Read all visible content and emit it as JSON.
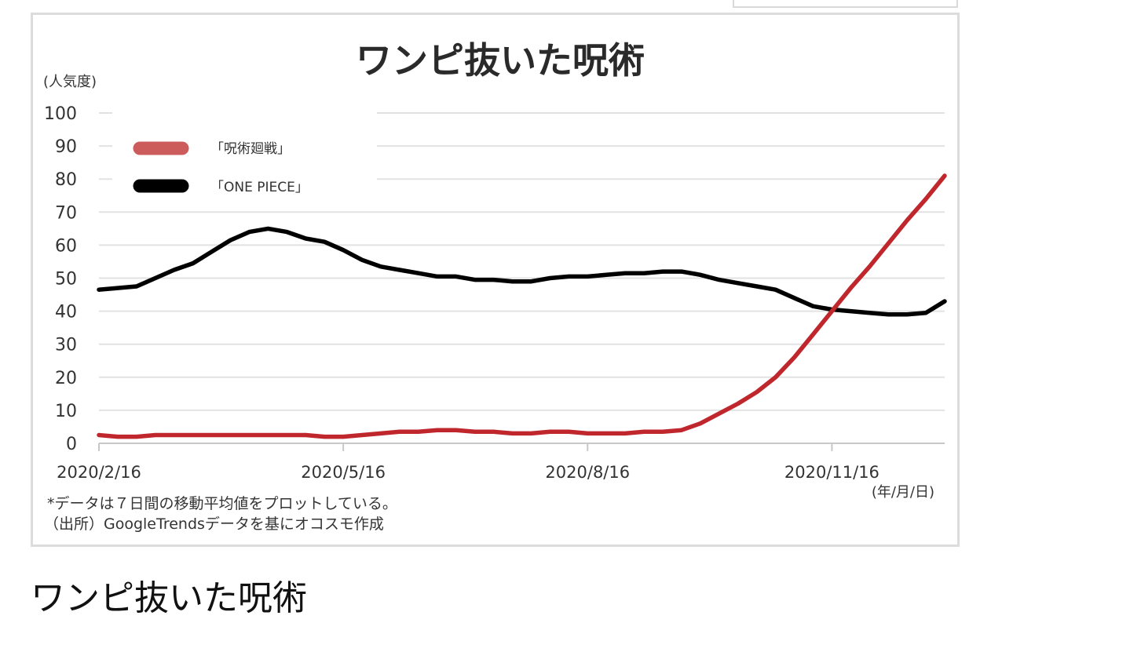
{
  "caption": "ワンピ抜いた呪術",
  "chart_data": {
    "type": "line",
    "title": "ワンピ抜いた呪術",
    "ylabel": "(人気度)",
    "xlabel": "(年/月/日)",
    "ylim": [
      0,
      100
    ],
    "yticks": [
      0,
      10,
      20,
      30,
      40,
      50,
      60,
      70,
      80,
      90,
      100
    ],
    "x_tick_labels": [
      "2020/2/16",
      "2020/5/16",
      "2020/8/16",
      "2020/11/16"
    ],
    "x_tick_weeks": [
      0,
      13,
      26,
      39
    ],
    "grid": true,
    "legend_placement": "top-left",
    "notes": [
      "*データは７日間の移動平均値をプロットしている。",
      "（出所）GoogleTrendsデータを基にオコスモ作成"
    ],
    "series": [
      {
        "name": "「呪術廻戦」",
        "color": "#c0272d",
        "legend_color": "#cc5c5c",
        "values": [
          2.5,
          2,
          2,
          2.5,
          2.5,
          2.5,
          2.5,
          2.5,
          2.5,
          2.5,
          2.5,
          2.5,
          2,
          2,
          2.5,
          3,
          3.5,
          3.5,
          4,
          4,
          3.5,
          3.5,
          3,
          3,
          3.5,
          3.5,
          3,
          3,
          3,
          3.5,
          3.5,
          4,
          6,
          9,
          12,
          15.5,
          20,
          26,
          33,
          40,
          47,
          53.5,
          60.5,
          67.5,
          74,
          81
        ]
      },
      {
        "name": "「ONE PIECE」",
        "color": "#000000",
        "legend_color": "#000000",
        "values": [
          46.5,
          47,
          47.5,
          50,
          52.5,
          54.5,
          58,
          61.5,
          64,
          65,
          64,
          62,
          61,
          58.5,
          55.5,
          53.5,
          52.5,
          51.5,
          50.5,
          50.5,
          49.5,
          49.5,
          49,
          49,
          50,
          50.5,
          50.5,
          51,
          51.5,
          51.5,
          52,
          52,
          51,
          49.5,
          48.5,
          47.5,
          46.5,
          44,
          41.5,
          40.5,
          40,
          39.5,
          39,
          39,
          39.5,
          43
        ]
      }
    ]
  }
}
